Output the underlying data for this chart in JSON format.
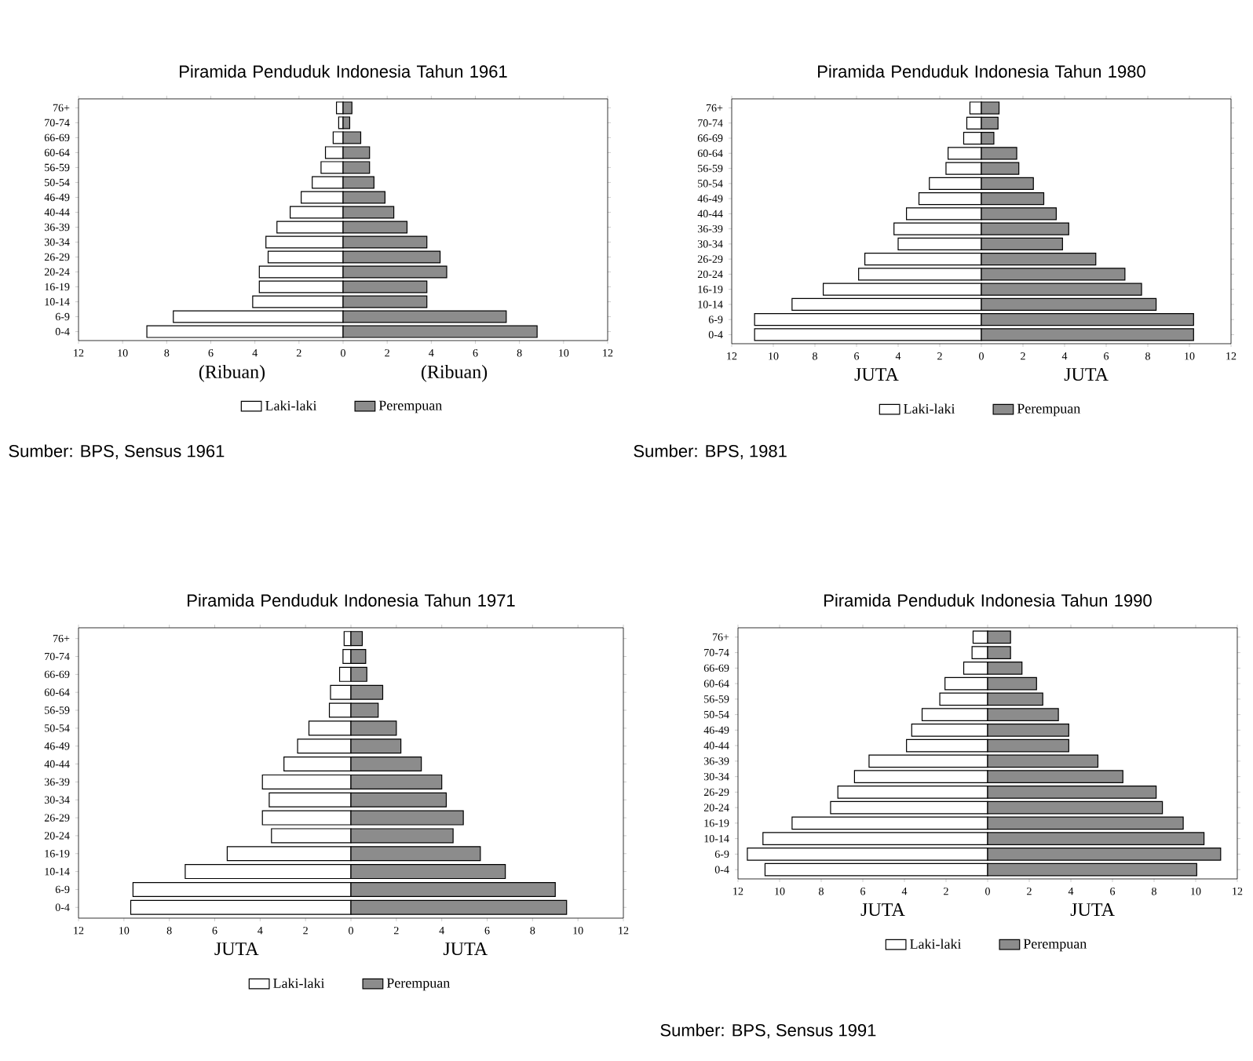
{
  "chart_data": [
    {
      "type": "bar",
      "orientation": "horizontal",
      "title": "Piramida Penduduk Indonesia Tahun 1961",
      "stacked": true,
      "xlabel": "(Ribuan)",
      "legend": "bottom",
      "categories": [
        "76+",
        "70-74",
        "66-69",
        "60-64",
        "56-59",
        "50-54",
        "46-49",
        "40-44",
        "36-39",
        "30-34",
        "26-29",
        "20-24",
        "16-19",
        "10-14",
        "6-9",
        "0-4"
      ],
      "series": [
        {
          "name": "Laki-laki",
          "color": "#ffffff",
          "values": [
            -0.3,
            -0.2,
            -0.45,
            -0.8,
            -1.0,
            -1.4,
            -1.9,
            -2.4,
            -3.0,
            -3.5,
            -3.4,
            -3.8,
            -3.8,
            -4.1,
            -7.7,
            -8.9
          ]
        },
        {
          "name": "Perempuan",
          "color": "#8c8c8c",
          "values": [
            0.4,
            0.3,
            0.8,
            1.2,
            1.2,
            1.4,
            1.9,
            2.3,
            2.9,
            3.8,
            4.4,
            4.7,
            3.8,
            3.8,
            7.4,
            8.8
          ]
        }
      ],
      "xlim": [
        -12,
        12
      ],
      "xticks": [
        {
          "value": -12,
          "label": "12"
        },
        {
          "value": -10,
          "label": "10"
        },
        {
          "value": -8,
          "label": "8"
        },
        {
          "value": -6,
          "label": "6"
        },
        {
          "value": -4,
          "label": "4"
        },
        {
          "value": -2,
          "label": "2"
        },
        0,
        2,
        4,
        6,
        8,
        10,
        12
      ],
      "annotations": [
        "Sumber: BPS, Sensus 1961"
      ]
    },
    {
      "type": "bar",
      "orientation": "horizontal",
      "title": "Piramida Penduduk Indonesia Tahun 1980",
      "stacked": true,
      "xlabel": "JUTA",
      "legend": "bottom",
      "categories": [
        "76+",
        "70-74",
        "66-69",
        "60-64",
        "56-59",
        "50-54",
        "46-49",
        "40-44",
        "36-39",
        "30-34",
        "26-29",
        "20-24",
        "16-19",
        "10-14",
        "6-9",
        "0-4"
      ],
      "series": [
        {
          "name": "Laki-laki",
          "color": "#ffffff",
          "values": [
            -0.55,
            -0.7,
            -0.85,
            -1.6,
            -1.7,
            -2.5,
            -3.0,
            -3.6,
            -4.2,
            -4.0,
            -5.6,
            -5.9,
            -7.6,
            -9.1,
            -10.9,
            -10.9
          ]
        },
        {
          "name": "Perempuan",
          "color": "#8c8c8c",
          "values": [
            0.85,
            0.8,
            0.6,
            1.7,
            1.8,
            2.5,
            3.0,
            3.6,
            4.2,
            3.9,
            5.5,
            6.9,
            7.7,
            8.4,
            10.2,
            10.2
          ]
        }
      ],
      "xlim": [
        -12,
        12
      ],
      "xticks": [
        {
          "value": -12,
          "label": "12"
        },
        {
          "value": -10,
          "label": "10"
        },
        {
          "value": -8,
          "label": "8"
        },
        {
          "value": -6,
          "label": "6"
        },
        {
          "value": -4,
          "label": "4"
        },
        {
          "value": -2,
          "label": "2"
        },
        0,
        2,
        4,
        6,
        8,
        10,
        12
      ],
      "annotations": [
        "Sumber: BPS, 1981"
      ]
    },
    {
      "type": "bar",
      "orientation": "horizontal",
      "title": "Piramida Penduduk Indonesia Tahun 1971",
      "stacked": true,
      "xlabel": "JUTA",
      "legend": "bottom",
      "categories": [
        "76+",
        "70-74",
        "66-69",
        "60-64",
        "56-59",
        "50-54",
        "46-49",
        "40-44",
        "36-39",
        "30-34",
        "26-29",
        "20-24",
        "16-19",
        "10-14",
        "6-9",
        "0-4"
      ],
      "series": [
        {
          "name": "Laki-laki",
          "color": "#ffffff",
          "values": [
            -0.3,
            -0.35,
            -0.5,
            -0.9,
            -0.95,
            -1.85,
            -2.35,
            -2.95,
            -3.9,
            -3.6,
            -3.9,
            -3.5,
            -5.45,
            -7.3,
            -9.6,
            -9.7
          ]
        },
        {
          "name": "Perempuan",
          "color": "#8c8c8c",
          "values": [
            0.5,
            0.65,
            0.7,
            1.4,
            1.2,
            2.0,
            2.2,
            3.1,
            4.0,
            4.2,
            4.95,
            4.5,
            5.7,
            6.8,
            9.0,
            9.5
          ]
        }
      ],
      "xlim": [
        -12,
        12
      ],
      "xticks": [
        {
          "value": -12,
          "label": "12"
        },
        {
          "value": -10,
          "label": "10"
        },
        {
          "value": -8,
          "label": "8"
        },
        {
          "value": -6,
          "label": "6"
        },
        {
          "value": -4,
          "label": "4"
        },
        {
          "value": -2,
          "label": "2"
        },
        0,
        2,
        4,
        6,
        8,
        10,
        12
      ]
    },
    {
      "type": "bar",
      "orientation": "horizontal",
      "title": "Piramida Penduduk Indonesia Tahun 1990",
      "stacked": true,
      "xlabel": "JUTA",
      "legend": "bottom",
      "categories": [
        "76+",
        "70-74",
        "66-69",
        "60-64",
        "56-59",
        "50-54",
        "46-49",
        "40-44",
        "36-39",
        "30-34",
        "26-29",
        "20-24",
        "16-19",
        "10-14",
        "6-9",
        "0-4"
      ],
      "series": [
        {
          "name": "Laki-laki",
          "color": "#ffffff",
          "values": [
            -0.7,
            -0.75,
            -1.15,
            -2.05,
            -2.3,
            -3.15,
            -3.65,
            -3.9,
            -5.7,
            -6.4,
            -7.2,
            -7.55,
            -9.4,
            -10.8,
            -11.55,
            -10.7
          ]
        },
        {
          "name": "Perempuan",
          "color": "#8c8c8c",
          "values": [
            1.1,
            1.1,
            1.65,
            2.35,
            2.65,
            3.4,
            3.9,
            3.9,
            5.3,
            6.5,
            8.1,
            8.4,
            9.4,
            10.4,
            11.2,
            10.05
          ]
        }
      ],
      "xlim": [
        -12,
        12
      ],
      "xticks": [
        {
          "value": -12,
          "label": "12"
        },
        {
          "value": -10,
          "label": "10"
        },
        {
          "value": -8,
          "label": "8"
        },
        {
          "value": -6,
          "label": "6"
        },
        {
          "value": -4,
          "label": "4"
        },
        {
          "value": -2,
          "label": "2"
        },
        0,
        2,
        4,
        6,
        8,
        10,
        12
      ],
      "annotations": [
        "Sumber: BPS, Sensus 1991"
      ]
    }
  ]
}
